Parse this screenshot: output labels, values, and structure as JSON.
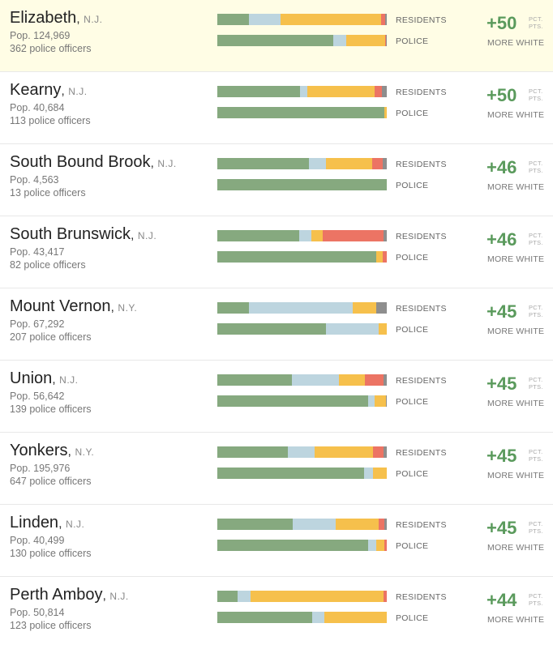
{
  "colors": {
    "white": "#86a97f",
    "black": "#bdd5df",
    "hispanic": "#f6c04c",
    "asian": "#ec7464",
    "other": "#8e8e8e",
    "gap": "#5a9a5c"
  },
  "labels": {
    "residents": "RESIDENTS",
    "police": "POLICE",
    "pts": "PCT. PTS.",
    "pct": "PCT.",
    "pts_short": "PTS.",
    "more_white": "MORE WHITE"
  },
  "chart_data": {
    "type": "bar",
    "orientation": "horizontal-stacked",
    "series_order": [
      "white",
      "black",
      "hispanic",
      "asian",
      "other"
    ],
    "rows": [
      {
        "city": "Elizabeth",
        "state": "N.J.",
        "pop": "Pop. 124,969",
        "officers": "362 police officers",
        "gap": "+50",
        "highlight": true,
        "residents": [
          18.5,
          19,
          59,
          2.5,
          1
        ],
        "police": [
          68.5,
          7.5,
          23,
          0.5,
          0.5
        ]
      },
      {
        "city": "Kearny",
        "state": "N.J.",
        "pop": "Pop. 40,684",
        "officers": "113 police officers",
        "gap": "+50",
        "highlight": false,
        "residents": [
          49,
          4,
          40,
          4,
          3
        ],
        "police": [
          98.5,
          0,
          1.5,
          0,
          0
        ]
      },
      {
        "city": "South Bound Brook",
        "state": "N.J.",
        "pop": "Pop. 4,563",
        "officers": "13 police officers",
        "gap": "+46",
        "highlight": false,
        "residents": [
          54,
          10,
          27.5,
          6,
          2.5
        ],
        "police": [
          100,
          0,
          0,
          0,
          0
        ]
      },
      {
        "city": "South Brunswick",
        "state": "N.J.",
        "pop": "Pop. 43,417",
        "officers": "82 police officers",
        "gap": "+46",
        "highlight": false,
        "residents": [
          48.5,
          7,
          6.5,
          36,
          2
        ],
        "police": [
          94,
          0,
          3.5,
          2.5,
          0
        ]
      },
      {
        "city": "Mount Vernon",
        "state": "N.Y.",
        "pop": "Pop. 67,292",
        "officers": "207 police officers",
        "gap": "+45",
        "highlight": false,
        "residents": [
          18.5,
          61.5,
          14,
          0,
          6
        ],
        "police": [
          64,
          31,
          5,
          0,
          0
        ]
      },
      {
        "city": "Union",
        "state": "N.J.",
        "pop": "Pop. 56,642",
        "officers": "139 police officers",
        "gap": "+45",
        "highlight": false,
        "residents": [
          44,
          28,
          15,
          11,
          2
        ],
        "police": [
          89,
          4,
          6.5,
          0,
          0.5
        ]
      },
      {
        "city": "Yonkers",
        "state": "N.Y.",
        "pop": "Pop. 195,976",
        "officers": "647 police officers",
        "gap": "+45",
        "highlight": false,
        "residents": [
          41.5,
          16,
          34.5,
          6,
          2
        ],
        "police": [
          86.5,
          5.5,
          8,
          0,
          0
        ]
      },
      {
        "city": "Linden",
        "state": "N.J.",
        "pop": "Pop. 40,499",
        "officers": "130 police officers",
        "gap": "+45",
        "highlight": false,
        "residents": [
          44.5,
          25.5,
          25,
          3.5,
          1.5
        ],
        "police": [
          89,
          5,
          4.5,
          1.5,
          0
        ]
      },
      {
        "city": "Perth Amboy",
        "state": "N.J.",
        "pop": "Pop. 50,814",
        "officers": "123 police officers",
        "gap": "+44",
        "highlight": false,
        "residents": [
          12,
          7.5,
          78.5,
          2,
          0
        ],
        "police": [
          56,
          7,
          37,
          0,
          0
        ]
      }
    ]
  }
}
